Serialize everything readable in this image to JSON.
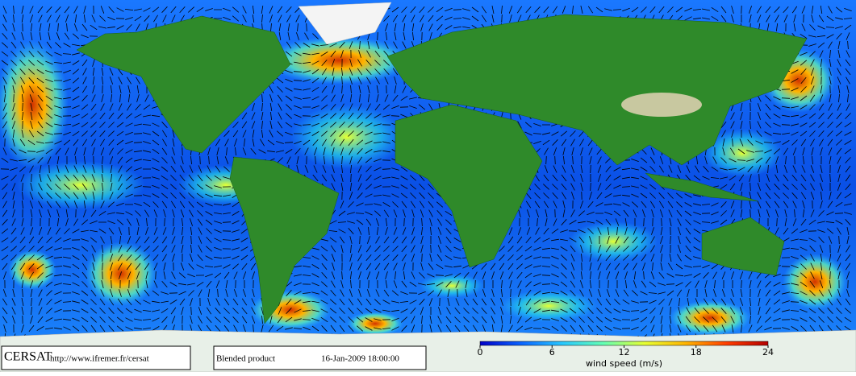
{
  "footer": {
    "logo": "CERSAT",
    "url": "http://www.ifremer.fr/cersat",
    "product": "Blended product",
    "timestamp": "16-Jan-2009 18:00:00"
  },
  "colorbar": {
    "label": "wind speed (m/s)",
    "range": [
      0,
      24
    ],
    "ticks": [
      0,
      6,
      12,
      18,
      24
    ],
    "colors": [
      "#0000c8",
      "#0a64ff",
      "#28c8ff",
      "#64ffb4",
      "#e6ff32",
      "#ffb400",
      "#ff3c00",
      "#b40000"
    ]
  }
}
